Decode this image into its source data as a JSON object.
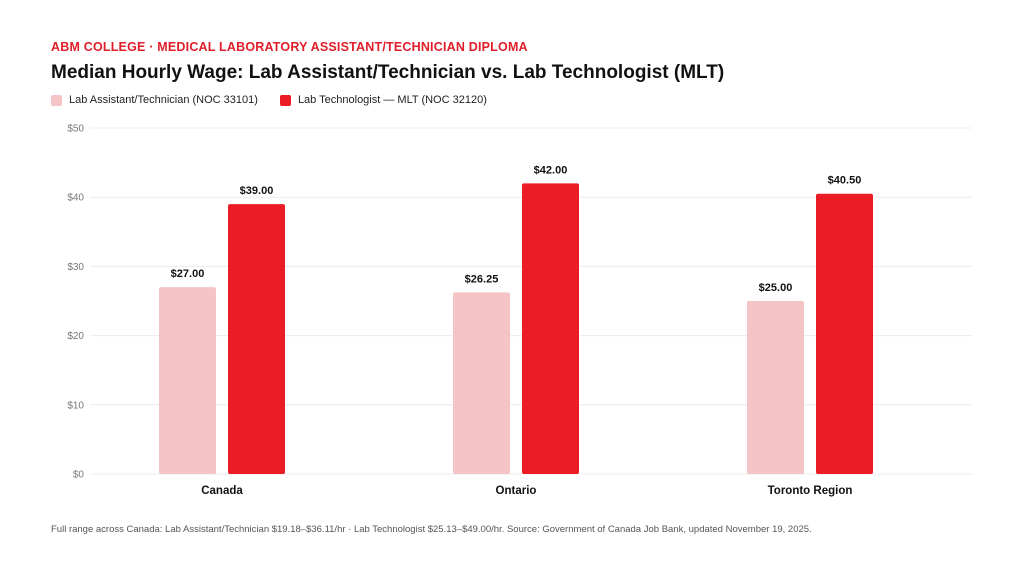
{
  "header": {
    "eyebrow": "ABM COLLEGE · MEDICAL LABORATORY ASSISTANT/TECHNICIAN DIPLOMA",
    "title": "Median Hourly Wage: Lab Assistant/Technician vs. Lab Technologist (MLT)"
  },
  "colors": {
    "assistant": "#f5c4c6",
    "technologist": "#ec1c27",
    "grid": "#ececec",
    "axis_text": "#777777"
  },
  "chart_data": {
    "type": "bar",
    "categories": [
      "Canada",
      "Ontario",
      "Toronto Region"
    ],
    "series": [
      {
        "name": "Lab Assistant/Technician (NOC 33101)",
        "values": [
          27.0,
          26.25,
          25.0
        ]
      },
      {
        "name": "Lab Technologist — MLT (NOC 32120)",
        "values": [
          39.0,
          42.0,
          40.5
        ]
      }
    ],
    "data_labels": [
      [
        "$27.00",
        "$26.25",
        "$25.00"
      ],
      [
        "$39.00",
        "$42.00",
        "$40.50"
      ]
    ],
    "y_ticks": [
      0,
      10,
      20,
      30,
      40,
      50
    ],
    "y_tick_labels": [
      "$0",
      "$10",
      "$20",
      "$30",
      "$40",
      "$50"
    ],
    "ylim": [
      0,
      50
    ],
    "grid": true,
    "legend_position": "top-left"
  },
  "footnote": "Full range across Canada: Lab Assistant/Technician $19.18–$36.11/hr · Lab Technologist $25.13–$49.00/hr. Source: Government of Canada Job Bank, updated November 19, 2025."
}
